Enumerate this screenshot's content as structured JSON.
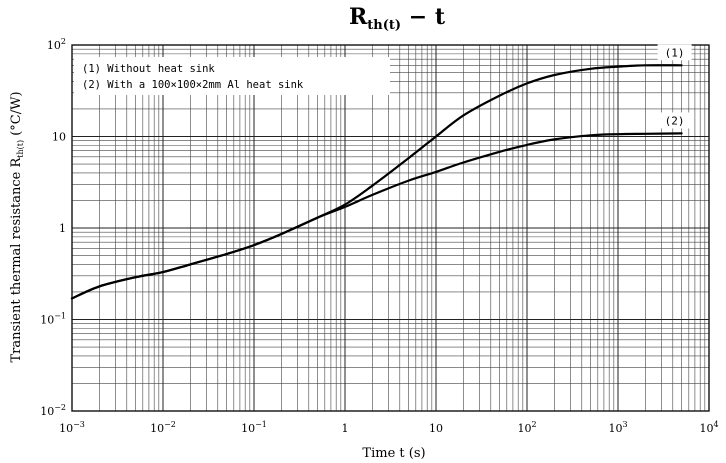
{
  "chart_data": {
    "type": "line",
    "title": "R",
    "title_subscript": "th(t)",
    "title_suffix": " − t",
    "xlabel": "Time t (s)",
    "ylabel": "Transient thermal resistance R",
    "ylabel_subscript": "th(t)",
    "ylabel_unit": " (°C/W)",
    "x_scale": "log",
    "y_scale": "log",
    "xlim": [
      0.001,
      10000
    ],
    "ylim": [
      0.01,
      100
    ],
    "grid": true,
    "x_ticks": [
      {
        "value": 0.001,
        "label": "10",
        "exp": "−3"
      },
      {
        "value": 0.01,
        "label": "10",
        "exp": "−2"
      },
      {
        "value": 0.1,
        "label": "10",
        "exp": "−1"
      },
      {
        "value": 1,
        "label": "1",
        "exp": ""
      },
      {
        "value": 10,
        "label": "10",
        "exp": ""
      },
      {
        "value": 100,
        "label": "10",
        "exp": "2"
      },
      {
        "value": 1000,
        "label": "10",
        "exp": "3"
      },
      {
        "value": 10000,
        "label": "10",
        "exp": "4"
      }
    ],
    "y_ticks": [
      {
        "value": 0.01,
        "label": "10",
        "exp": "−2"
      },
      {
        "value": 0.1,
        "label": "10",
        "exp": "−1"
      },
      {
        "value": 1,
        "label": "1",
        "exp": ""
      },
      {
        "value": 10,
        "label": "10",
        "exp": ""
      },
      {
        "value": 100,
        "label": "10",
        "exp": "2"
      }
    ],
    "legend_placement": "top-left",
    "legend": [
      "(1)  Without heat sink",
      "(2)  With a 100×100×2mm Al heat sink"
    ],
    "series": [
      {
        "id": "1",
        "label": "(1)",
        "x": [
          0.001,
          0.002,
          0.005,
          0.01,
          0.02,
          0.05,
          0.1,
          0.2,
          0.5,
          1,
          2,
          5,
          10,
          20,
          50,
          100,
          200,
          500,
          1000,
          2000,
          5000
        ],
        "y": [
          0.17,
          0.23,
          0.29,
          0.33,
          0.4,
          0.52,
          0.65,
          0.86,
          1.3,
          1.8,
          2.9,
          5.8,
          10,
          17,
          28,
          38,
          47,
          55,
          58,
          60,
          60
        ]
      },
      {
        "id": "2",
        "label": "(2)",
        "x": [
          0.001,
          0.002,
          0.005,
          0.01,
          0.02,
          0.05,
          0.1,
          0.2,
          0.5,
          1,
          2,
          5,
          10,
          20,
          50,
          100,
          200,
          500,
          1000,
          2000,
          5000
        ],
        "y": [
          0.17,
          0.23,
          0.29,
          0.33,
          0.4,
          0.52,
          0.65,
          0.86,
          1.3,
          1.7,
          2.3,
          3.3,
          4.1,
          5.2,
          6.8,
          8.1,
          9.3,
          10.3,
          10.6,
          10.7,
          10.8
        ]
      }
    ]
  }
}
